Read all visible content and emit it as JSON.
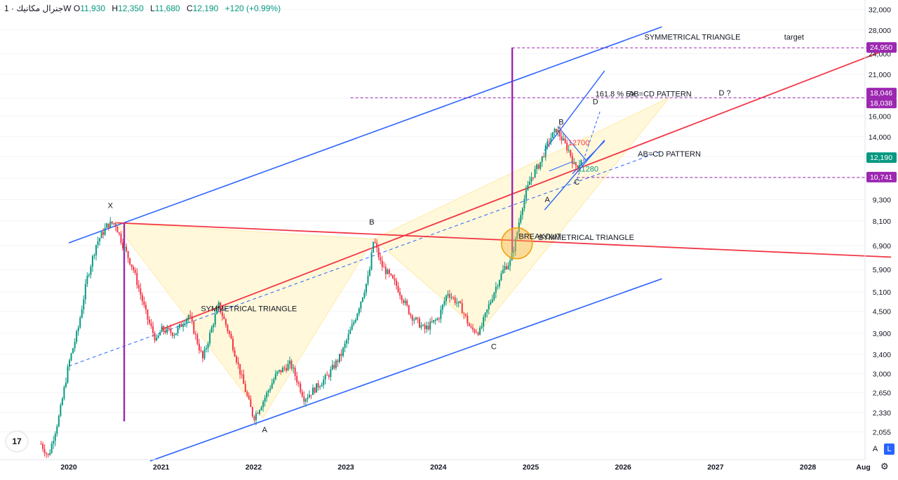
{
  "header": {
    "symbol": "جنرال مكانيك",
    "interval": "1W",
    "open_label": "O",
    "open": "11,930",
    "high_label": "H",
    "high": "12,350",
    "low_label": "L",
    "low": "11,680",
    "close_label": "C",
    "close": "12,190",
    "change": "+120 (+0.99%)"
  },
  "colors": {
    "up": "#089981",
    "down": "#f23645",
    "channel": "#2962ff",
    "trend": "#f23645",
    "purple": "#9c27b0",
    "triangle_fill": "#fff8d6",
    "triangle_edge": "#ffe8a0",
    "circle": "#f7b84b"
  },
  "chart_data": {
    "type": "candlestick",
    "y_scale": "log",
    "ylim": [
      1700,
      32500
    ],
    "y_ticks": [
      "32,000",
      "28,000",
      "24,000",
      "21,000",
      "18,000",
      "16,000",
      "14,000",
      "12,300",
      "10,700",
      "9,300",
      "8,100",
      "6,900",
      "5,900",
      "5,100",
      "4,500",
      "3,900",
      "3,400",
      "3,000",
      "2,650",
      "2,330",
      "2,055"
    ],
    "x_ticks": [
      "2020",
      "2021",
      "2022",
      "2023",
      "2024",
      "2025",
      "2026",
      "2027",
      "2028",
      "Aug"
    ],
    "x_tick_values": [
      2020,
      2021,
      2022,
      2023,
      2024,
      2025,
      2026,
      2027,
      2028,
      2028.6
    ],
    "price_marks": [
      {
        "label": "24,950",
        "value": 24950,
        "color": "#9c27b0"
      },
      {
        "label": "18,046",
        "value": 18046,
        "color": "#9c27b0"
      },
      {
        "label": "18,038",
        "value": 18038,
        "color": "#9c27b0"
      },
      {
        "label": "12,190",
        "value": 12190,
        "color": "#089981"
      },
      {
        "label": "10,741",
        "value": 10741,
        "color": "#9c27b0"
      }
    ],
    "path_anchors": [
      [
        2019.7,
        1900
      ],
      [
        2019.78,
        1750
      ],
      [
        2019.9,
        2300
      ],
      [
        2020.0,
        3200
      ],
      [
        2020.1,
        4000
      ],
      [
        2020.2,
        5600
      ],
      [
        2020.3,
        7000
      ],
      [
        2020.42,
        7900
      ],
      [
        2020.5,
        8000
      ],
      [
        2020.58,
        7000
      ],
      [
        2020.7,
        5900
      ],
      [
        2020.85,
        4300
      ],
      [
        2020.95,
        3700
      ],
      [
        2021.0,
        4000
      ],
      [
        2021.15,
        3900
      ],
      [
        2021.3,
        4400
      ],
      [
        2021.45,
        3300
      ],
      [
        2021.62,
        4700
      ],
      [
        2021.75,
        3800
      ],
      [
        2021.9,
        2750
      ],
      [
        2022.0,
        2250
      ],
      [
        2022.1,
        2500
      ],
      [
        2022.25,
        3000
      ],
      [
        2022.4,
        3200
      ],
      [
        2022.55,
        2550
      ],
      [
        2022.65,
        2700
      ],
      [
        2022.8,
        2950
      ],
      [
        2022.95,
        3400
      ],
      [
        2023.1,
        4300
      ],
      [
        2023.25,
        5700
      ],
      [
        2023.3,
        7200
      ],
      [
        2023.38,
        6100
      ],
      [
        2023.55,
        5300
      ],
      [
        2023.7,
        4400
      ],
      [
        2023.85,
        4000
      ],
      [
        2024.0,
        4300
      ],
      [
        2024.1,
        5100
      ],
      [
        2024.25,
        4600
      ],
      [
        2024.35,
        4000
      ],
      [
        2024.45,
        3950
      ],
      [
        2024.55,
        4700
      ],
      [
        2024.65,
        5500
      ],
      [
        2024.72,
        6000
      ],
      [
        2024.78,
        6200
      ],
      [
        2024.84,
        7200
      ],
      [
        2024.9,
        8800
      ],
      [
        2025.0,
        10700
      ],
      [
        2025.1,
        11800
      ],
      [
        2025.2,
        13700
      ],
      [
        2025.28,
        14700
      ],
      [
        2025.35,
        13600
      ],
      [
        2025.42,
        12700
      ],
      [
        2025.47,
        11600
      ],
      [
        2025.52,
        11700
      ],
      [
        2025.55,
        12190
      ]
    ],
    "annotations": [
      {
        "text": "X",
        "x": 2020.45,
        "y": 8800
      },
      {
        "text": "A",
        "x": 2022.12,
        "y": 2050
      },
      {
        "text": "B",
        "x": 2023.28,
        "y": 7900
      },
      {
        "text": "C",
        "x": 2024.6,
        "y": 3520
      },
      {
        "text": "A",
        "x": 2025.18,
        "y": 9150
      },
      {
        "text": "B",
        "x": 2025.33,
        "y": 15150
      },
      {
        "text": "C",
        "x": 2025.5,
        "y": 10250
      },
      {
        "text": "D",
        "x": 2025.7,
        "y": 17300
      },
      {
        "text": "12700",
        "x": 2025.52,
        "y": 13250
      },
      {
        "text": "11280",
        "x": 2025.62,
        "y": 11150
      },
      {
        "text": "SYMMETRICAL TRIANGLE",
        "x": 2021.95,
        "y": 4500
      },
      {
        "text": "BREAKOUT",
        "x": 2025.1,
        "y": 7200
      },
      {
        "text": "SYMMETRICAL TRIANGLE",
        "x": 2025.6,
        "y": 7150
      },
      {
        "text": "161.8 % EX",
        "x": 2025.92,
        "y": 18200
      },
      {
        "text": "AB=CD PATTERN",
        "x": 2026.4,
        "y": 18200
      },
      {
        "text": "D ?",
        "x": 2027.1,
        "y": 18300
      },
      {
        "text": "AB=CD PATTERN",
        "x": 2026.5,
        "y": 12300
      },
      {
        "text": "SYMMETRICAL TRIANGLE",
        "x": 2026.75,
        "y": 26300
      },
      {
        "text": "target",
        "x": 2027.85,
        "y": 26300
      }
    ]
  }
}
